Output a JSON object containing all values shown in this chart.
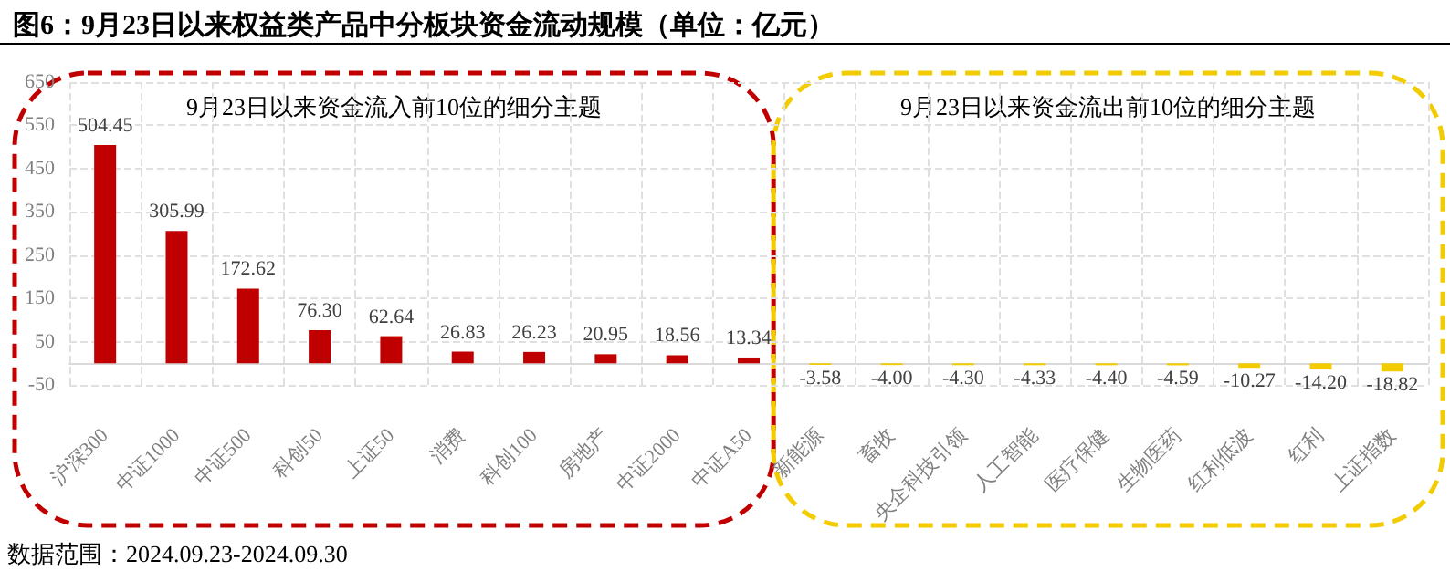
{
  "chart_data": {
    "type": "bar",
    "title": "图6：9月23日以来权益类产品中分板块资金流动规模（单位：亿元）",
    "categories": [
      "沪深300",
      "中证1000",
      "中证500",
      "科创50",
      "上证50",
      "消费",
      "科创100",
      "房地产",
      "中证2000",
      "中证A50",
      "新能源",
      "畜牧",
      "央企科技引领",
      "人工智能",
      "医疗保健",
      "生物医药",
      "红利低波",
      "红利",
      "上证指数"
    ],
    "values": [
      504.45,
      305.99,
      172.62,
      76.3,
      62.64,
      26.83,
      26.23,
      20.95,
      18.56,
      13.34,
      -3.58,
      -4.0,
      -4.3,
      -4.33,
      -4.4,
      -4.59,
      -10.27,
      -14.2,
      -18.82
    ],
    "value_labels": [
      "504.45",
      "305.99",
      "172.62",
      "76.30",
      "62.64",
      "26.83",
      "26.23",
      "20.95",
      "18.56",
      "13.34",
      "-3.58",
      "-4.00",
      "-4.30",
      "-4.33",
      "-4.40",
      "-4.59",
      "-10.27",
      "-14.20",
      "-18.82"
    ],
    "colors": [
      "#c00000",
      "#c00000",
      "#c00000",
      "#c00000",
      "#c00000",
      "#c00000",
      "#c00000",
      "#c00000",
      "#c00000",
      "#c00000",
      "#f2cc00",
      "#f2cc00",
      "#f2cc00",
      "#f2cc00",
      "#f2cc00",
      "#f2cc00",
      "#f2cc00",
      "#f2cc00",
      "#f2cc00"
    ],
    "ylim": [
      -50,
      650
    ],
    "yticks": [
      -50,
      50,
      150,
      250,
      350,
      450,
      550,
      650
    ],
    "grid": true,
    "annotations": [
      "9月23日以来资金流入前10位的细分主题",
      "9月23日以来资金流出前10位的细分主题",
      "数据范围：2024.09.23-2024.09.30"
    ]
  }
}
